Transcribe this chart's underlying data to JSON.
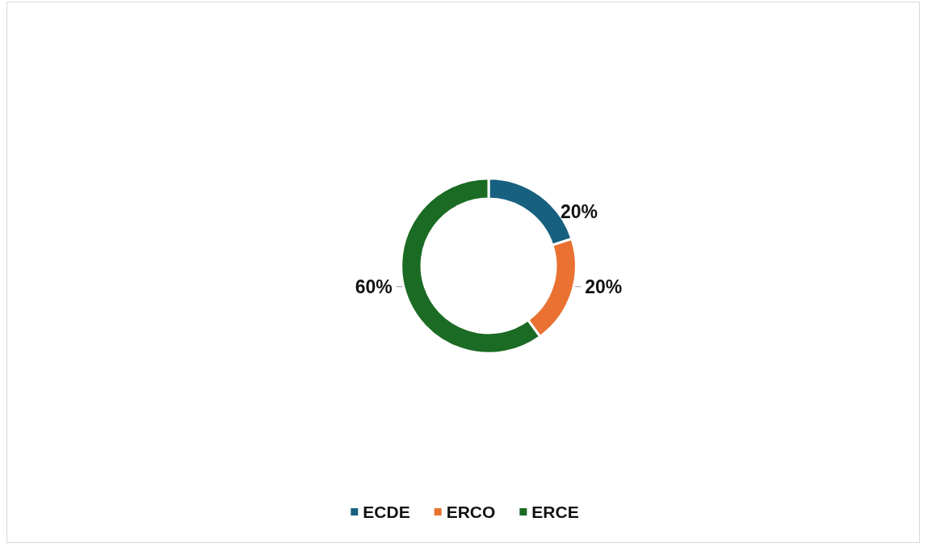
{
  "chart_data": {
    "type": "donut",
    "categories": [
      "ECDE",
      "ERCO",
      "ERCE"
    ],
    "values": [
      20,
      20,
      60
    ],
    "colors": [
      "#17607f",
      "#e97132",
      "#1b6b24"
    ],
    "value_labels": [
      "20%",
      "20%",
      "60%"
    ],
    "legend": "bottom"
  }
}
